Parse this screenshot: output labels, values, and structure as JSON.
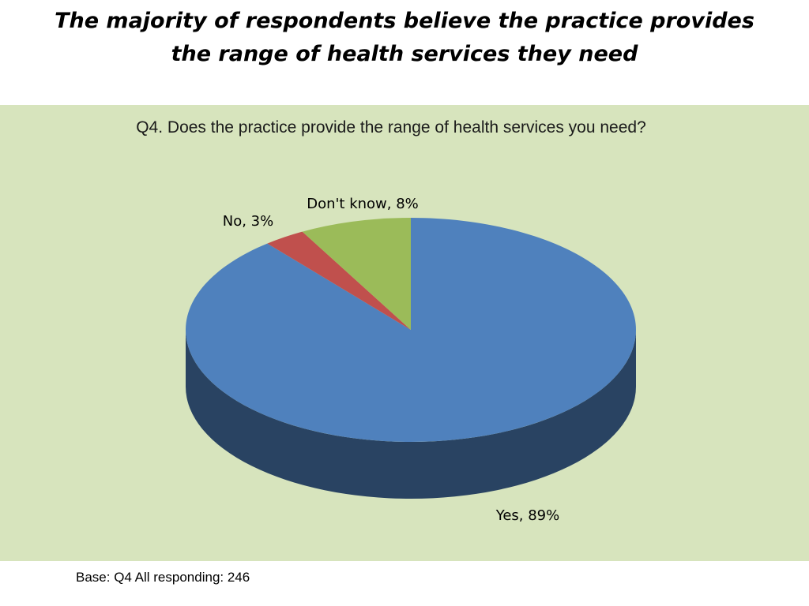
{
  "slide": {
    "title": "The majority of respondents believe the practice provides the range of health services they need",
    "base_note": "Base: Q4 All responding: 246"
  },
  "colors": {
    "panel_background": "#d7e4bd",
    "yes": "#4f81bd",
    "no": "#c0504d",
    "dont_know": "#9bbb59"
  },
  "chart_data": {
    "type": "pie",
    "style": "3d",
    "title": "Q4. Does the practice provide the range of health services you need?",
    "slices": [
      {
        "label": "Yes",
        "value": 89,
        "display": "Yes, 89%",
        "color": "#4f81bd"
      },
      {
        "label": "No",
        "value": 3,
        "display": "No, 3%",
        "color": "#c0504d"
      },
      {
        "label": "Don't know",
        "value": 8,
        "display": "Don't know, 8%",
        "color": "#9bbb59"
      }
    ],
    "legend": "none"
  }
}
